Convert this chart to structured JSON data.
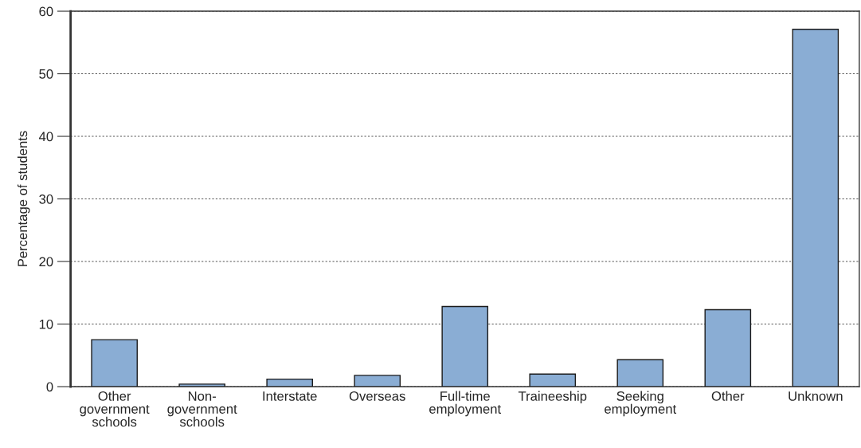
{
  "chart_data": {
    "type": "bar",
    "ylabel": "Percentage of students",
    "categories": [
      "Other\ngovernment\nschools",
      "Non-\ngovernment\nschools",
      "Interstate",
      "Overseas",
      "Full-time\nemployment",
      "Traineeship",
      "Seeking\nemployment",
      "Other",
      "Unknown"
    ],
    "values": [
      7.5,
      0.4,
      1.2,
      1.8,
      12.8,
      2.0,
      4.3,
      12.3,
      57.1
    ],
    "color": "#8aadd4",
    "ylim": [
      0,
      60
    ],
    "yticks": [
      0,
      10,
      20,
      30,
      40,
      50,
      60
    ],
    "grid": "y"
  }
}
